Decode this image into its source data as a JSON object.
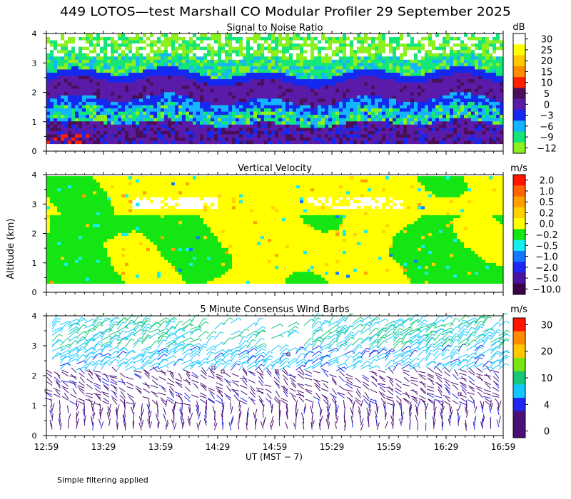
{
  "title": "449 LOTOS—test Marshall CO Modular Profiler 29 September 2025",
  "ylabel": "Altitude (km)",
  "xlabel": "UT  (MST − 7)",
  "footnote": "Simple filtering applied",
  "x_ticks": [
    "12:59",
    "13:29",
    "13:59",
    "14:29",
    "14:59",
    "15:29",
    "15:59",
    "16:29",
    "16:59"
  ],
  "y_ticks": [
    "0",
    "1",
    "2",
    "3",
    "4"
  ],
  "chart_data": [
    {
      "type": "heatmap",
      "title": "Signal to Noise Ratio",
      "unit": "dB",
      "x_range": [
        "12:59",
        "16:59"
      ],
      "ylim": [
        0,
        4
      ],
      "colorbar": [
        {
          "label": "30",
          "color": "#ffffff"
        },
        {
          "label": "25",
          "color": "#ffff00"
        },
        {
          "label": "20",
          "color": "#ffc800"
        },
        {
          "label": "15",
          "color": "#ff8c00"
        },
        {
          "label": "10",
          "color": "#ff2000"
        },
        {
          "label": "5",
          "color": "#4b0f58"
        },
        {
          "label": "0",
          "color": "#5a1ca8"
        },
        {
          "label": "−3",
          "color": "#1428f0"
        },
        {
          "label": "−6",
          "color": "#14b4ff"
        },
        {
          "label": "−9",
          "color": "#14e678"
        },
        {
          "label": "−12",
          "color": "#8cf01e"
        }
      ],
      "layers": [
        {
          "range_km": [
            3.2,
            4.0
          ],
          "db": -9,
          "note": "green with white (>30 dB) patches"
        },
        {
          "range_km": [
            2.6,
            3.2
          ],
          "db": -6
        },
        {
          "range_km": [
            1.8,
            2.6
          ],
          "db": 0
        },
        {
          "range_km": [
            1.4,
            1.8
          ],
          "db": -3
        },
        {
          "range_km": [
            0.9,
            1.4
          ],
          "db": -6
        },
        {
          "range_km": [
            0.3,
            0.9
          ],
          "db": 0
        }
      ]
    },
    {
      "type": "heatmap",
      "title": "Vertical Velocity",
      "unit": "m/s",
      "x_range": [
        "12:59",
        "16:59"
      ],
      "ylim": [
        0,
        4
      ],
      "colorbar": [
        {
          "label": "2.0",
          "color": "#ff1400"
        },
        {
          "label": "1.0",
          "color": "#ff6400"
        },
        {
          "label": "0.5",
          "color": "#ffa000"
        },
        {
          "label": "0.2",
          "color": "#ffd200"
        },
        {
          "label": "0.0",
          "color": "#ffff00"
        },
        {
          "label": "−0.2",
          "color": "#14e614"
        },
        {
          "label": "−0.5",
          "color": "#14f0f0"
        },
        {
          "label": "−1.0",
          "color": "#1478ff"
        },
        {
          "label": "−2.0",
          "color": "#1e28f0"
        },
        {
          "label": "−5.0",
          "color": "#4b14a0"
        },
        {
          "label": "−10.0",
          "color": "#3c0046"
        }
      ],
      "dominant_values": [
        "0.0",
        "−0.2"
      ]
    },
    {
      "type": "scatter",
      "title": "5 Minute Consensus Wind Barbs",
      "unit": "m/s",
      "x_range": [
        "12:59",
        "16:59"
      ],
      "ylim": [
        0,
        4
      ],
      "colorbar": [
        {
          "label": "30",
          "color": "#ff1400"
        },
        {
          "label": "",
          "color": "#ff8c00"
        },
        {
          "label": "20",
          "color": "#ffc800"
        },
        {
          "label": "",
          "color": "#78e614"
        },
        {
          "label": "10",
          "color": "#14c878"
        },
        {
          "label": "",
          "color": "#14c8ff"
        },
        {
          "label": "4",
          "color": "#1e28f0"
        },
        {
          "label": "",
          "color": "#4b0f78"
        },
        {
          "label": "0",
          "color": "#4b0f78"
        }
      ],
      "speed_by_altitude": [
        {
          "range_km": [
            0.2,
            2.1
          ],
          "speed_ms": 3
        },
        {
          "range_km": [
            2.1,
            2.9
          ],
          "speed_ms": 7
        },
        {
          "range_km": [
            2.9,
            3.8
          ],
          "speed_ms": 9
        }
      ]
    }
  ]
}
